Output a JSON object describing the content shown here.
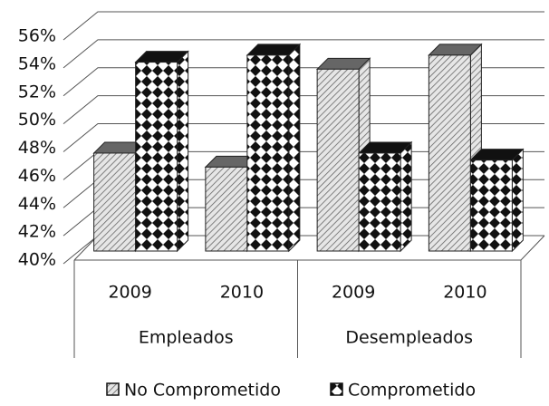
{
  "chart_data": {
    "type": "bar3d",
    "category_groups": [
      {
        "name": "Empleados",
        "categories": [
          "2009",
          "2010"
        ]
      },
      {
        "name": "Desempleados",
        "categories": [
          "2009",
          "2010"
        ]
      }
    ],
    "series": [
      {
        "name": "No Comprometido",
        "pattern": "hatch",
        "color": "#666666",
        "values": [
          47,
          46,
          53,
          54
        ]
      },
      {
        "name": "Comprometido",
        "pattern": "diamond",
        "color": "#111111",
        "values": [
          53.5,
          54,
          47,
          46.5
        ]
      }
    ],
    "ylim": [
      40,
      56
    ],
    "yticks": [
      {
        "value": 40,
        "label": "40%"
      },
      {
        "value": 42,
        "label": "42%"
      },
      {
        "value": 44,
        "label": "44%"
      },
      {
        "value": 46,
        "label": "46%"
      },
      {
        "value": 48,
        "label": "48%"
      },
      {
        "value": 50,
        "label": "50%"
      },
      {
        "value": 52,
        "label": "52%"
      },
      {
        "value": 54,
        "label": "54%"
      },
      {
        "value": 56,
        "label": "56%"
      }
    ],
    "grid": true,
    "legend": "bottom"
  }
}
